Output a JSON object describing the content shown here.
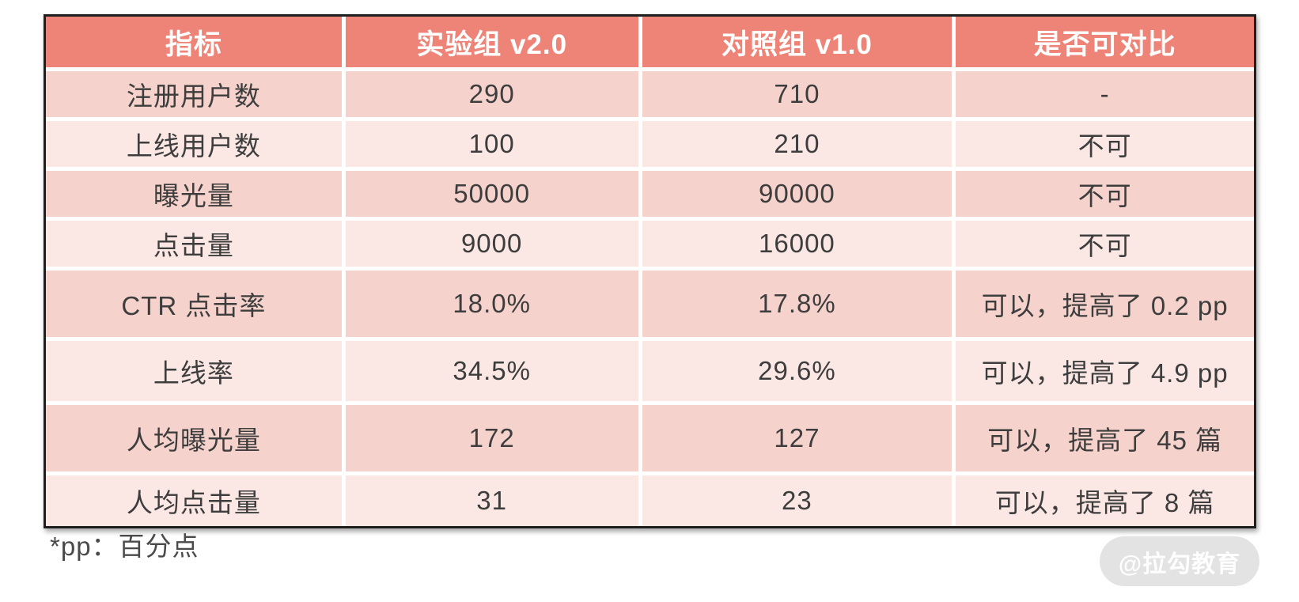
{
  "table": {
    "headers": [
      "指标",
      "实验组 v2.0",
      "对照组 v1.0",
      "是否可对比"
    ],
    "rows": [
      [
        "注册用户数",
        "290",
        "710",
        "-"
      ],
      [
        "上线用户数",
        "100",
        "210",
        "不可"
      ],
      [
        "曝光量",
        "50000",
        "90000",
        "不可"
      ],
      [
        "点击量",
        "9000",
        "16000",
        "不可"
      ],
      [
        "CTR 点击率",
        "18.0%",
        "17.8%",
        "可以，提高了 0.2 pp"
      ],
      [
        "上线率",
        "34.5%",
        "29.6%",
        "可以，提高了 4.9 pp"
      ],
      [
        "人均曝光量",
        "172",
        "127",
        "可以，提高了 45 篇"
      ],
      [
        "人均点击量",
        "31",
        "23",
        "可以，提高了 8 篇"
      ]
    ]
  },
  "footnote": "*pp：百分点",
  "watermark": "@拉勾教育",
  "colors": {
    "header_bg": "#ee8477",
    "header_text": "#ffffff",
    "row_odd_bg": "#f6d2cc",
    "row_even_bg": "#fbe7e3",
    "body_text": "#3d3d3d",
    "table_border": "#1e1e1e",
    "watermark_bg": "#e3e3e3",
    "watermark_text": "#ffffff"
  }
}
